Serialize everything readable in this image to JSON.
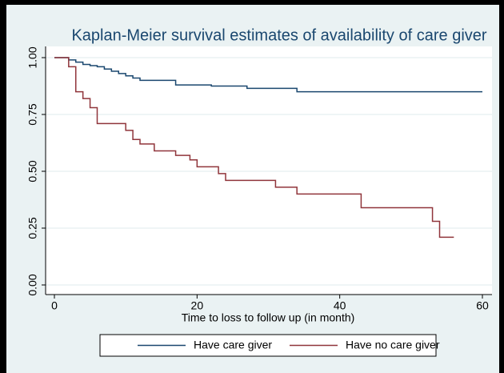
{
  "chart_data": {
    "type": "line",
    "step": "post",
    "title": "Kaplan-Meier survival estimates of availability of care giver",
    "x_label": "Time to loss to follow up (in month)",
    "series": [
      {
        "name": "Have care giver",
        "color": "#1a476f",
        "x": [
          0,
          2,
          3,
          4,
          5,
          6,
          7,
          8,
          9,
          10,
          11,
          12,
          17,
          22,
          27,
          34,
          60
        ],
        "values": [
          1.0,
          0.99,
          0.98,
          0.97,
          0.965,
          0.96,
          0.95,
          0.94,
          0.93,
          0.92,
          0.91,
          0.9,
          0.88,
          0.875,
          0.865,
          0.85,
          0.85
        ]
      },
      {
        "name": "Have no care giver",
        "color": "#90353b",
        "x": [
          0,
          2,
          3,
          4,
          5,
          6,
          10,
          11,
          12,
          14,
          17,
          19,
          20,
          23,
          24,
          31,
          34,
          43,
          53,
          54,
          56
        ],
        "values": [
          1.0,
          0.96,
          0.85,
          0.82,
          0.78,
          0.71,
          0.68,
          0.64,
          0.62,
          0.59,
          0.57,
          0.55,
          0.52,
          0.49,
          0.46,
          0.43,
          0.4,
          0.34,
          0.28,
          0.21,
          0.21
        ]
      }
    ],
    "xlim": [
      0,
      60
    ],
    "xticks": [
      0,
      20,
      40,
      60
    ],
    "ylim": [
      0,
      1
    ],
    "yticks": [
      {
        "value": 0,
        "label": "0.00"
      },
      0.25,
      {
        "value": 0.5,
        "label": "0.50"
      },
      0.75,
      {
        "value": 1,
        "label": "1.00"
      }
    ],
    "grid": true,
    "legend": "bottom"
  }
}
